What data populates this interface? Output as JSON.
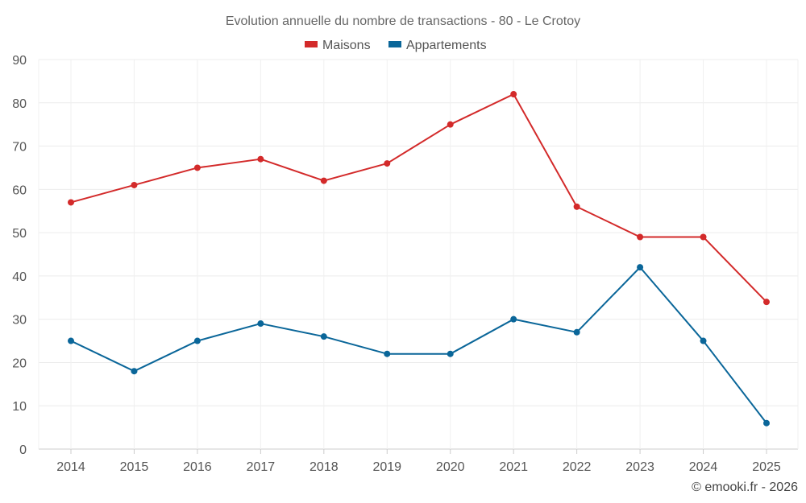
{
  "chart_data": {
    "type": "line",
    "title": "Evolution annuelle du nombre de transactions - 80 - Le Crotoy",
    "categories": [
      "2014",
      "2015",
      "2016",
      "2017",
      "2018",
      "2019",
      "2020",
      "2021",
      "2022",
      "2023",
      "2024",
      "2025"
    ],
    "series": [
      {
        "name": "Maisons",
        "color": "#d32a2a",
        "values": [
          57,
          61,
          65,
          67,
          62,
          66,
          75,
          82,
          56,
          49,
          49,
          34
        ]
      },
      {
        "name": "Appartements",
        "color": "#0a6699",
        "values": [
          25,
          18,
          25,
          29,
          26,
          22,
          22,
          30,
          27,
          42,
          25,
          6
        ]
      }
    ],
    "ylim": [
      0,
      90
    ],
    "yticks": [
      "0",
      "10",
      "20",
      "30",
      "40",
      "50",
      "60",
      "70",
      "80",
      "90"
    ],
    "grid": true,
    "legend_position": "top-center",
    "xlabel": "",
    "ylabel": ""
  },
  "credit": "© emooki.fr - 2026"
}
